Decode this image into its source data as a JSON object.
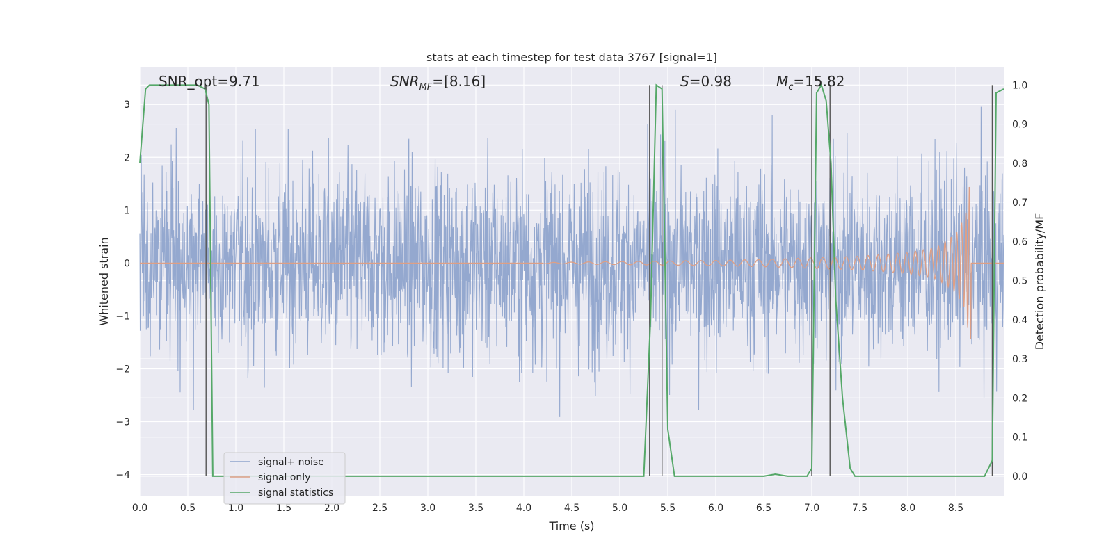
{
  "chart_data": {
    "type": "line",
    "title": "stats at each timestep for test data 3767 [signal=1]",
    "xlabel": "Time (s)",
    "ylabel": "Whitened strain",
    "y2label": "Detection probability/MF",
    "xlim": [
      0.0,
      9.0
    ],
    "ylim": [
      -4.4,
      3.7
    ],
    "y2lim": [
      -0.05,
      1.045
    ],
    "x_ticks": [
      0.0,
      0.5,
      1.0,
      1.5,
      2.0,
      2.5,
      3.0,
      3.5,
      4.0,
      4.5,
      5.0,
      5.5,
      6.0,
      6.5,
      7.0,
      7.5,
      8.0,
      8.5
    ],
    "x_tick_labels": [
      "0.0",
      "0.5",
      "1.0",
      "1.5",
      "2.0",
      "2.5",
      "3.0",
      "3.5",
      "4.0",
      "4.5",
      "5.0",
      "5.5",
      "6.0",
      "6.5",
      "7.0",
      "7.5",
      "8.0",
      "8.5"
    ],
    "y_ticks": [
      -4,
      -3,
      -2,
      -1,
      0,
      1,
      2,
      3
    ],
    "y_tick_labels": [
      "−4",
      "−3",
      "−2",
      "−1",
      "0",
      "1",
      "2",
      "3"
    ],
    "y2_ticks": [
      0.0,
      0.1,
      0.2,
      0.3,
      0.4,
      0.5,
      0.6,
      0.7,
      0.8,
      0.9,
      1.0
    ],
    "y2_tick_labels": [
      "0.0",
      "0.1",
      "0.2",
      "0.3",
      "0.4",
      "0.5",
      "0.6",
      "0.7",
      "0.8",
      "0.9",
      "1.0"
    ],
    "grid": true,
    "annotations": {
      "snr_opt": "SNR_opt=9.71",
      "snr_mf_prefix": "SNR",
      "snr_mf_sub": "MF",
      "snr_mf_value": "=[8.16]",
      "s_name": "S",
      "s_value": "=0.98",
      "mc_name": "M",
      "mc_sub": "c",
      "mc_value": "=15.82"
    },
    "legend": {
      "placement": "lower-left",
      "entries": [
        "signal+ noise",
        "signal only",
        "signal statistics"
      ]
    },
    "series": [
      {
        "name": "signal+ noise",
        "color": "#8fa4cc",
        "style": "whitened noise, amplitude approx 1 sigma, peaks up to about 3",
        "x_range": [
          0.0,
          9.0
        ]
      },
      {
        "name": "signal only",
        "color": "#dd9f86",
        "style": "chirp waveform growing toward merger",
        "x": [
          4.2,
          5.0,
          6.0,
          6.5,
          7.0,
          7.5,
          8.0,
          8.3,
          8.5,
          8.6,
          8.65,
          8.7
        ],
        "envelope": [
          0.01,
          0.03,
          0.05,
          0.07,
          0.1,
          0.13,
          0.2,
          0.3,
          0.55,
          0.9,
          1.6,
          0.0
        ]
      },
      {
        "name": "signal statistics",
        "color": "#55a868",
        "axis": "right",
        "x": [
          0.0,
          0.06,
          0.1,
          0.2,
          0.4,
          0.6,
          0.68,
          0.72,
          0.76,
          0.85,
          1.0,
          2.0,
          3.0,
          4.0,
          5.0,
          5.25,
          5.32,
          5.38,
          5.44,
          5.5,
          5.57,
          5.62,
          5.7,
          6.0,
          6.5,
          6.62,
          6.75,
          6.95,
          7.0,
          7.05,
          7.1,
          7.15,
          7.2,
          7.25,
          7.32,
          7.4,
          7.45,
          7.55,
          8.0,
          8.5,
          8.8,
          8.88,
          8.92,
          9.0
        ],
        "y": [
          0.8,
          0.99,
          1.0,
          1.0,
          1.0,
          1.0,
          0.99,
          0.95,
          0.0,
          0.0,
          0.0,
          0.0,
          0.0,
          0.0,
          0.0,
          0.0,
          0.4,
          1.0,
          0.99,
          0.12,
          0.0,
          0.0,
          0.0,
          0.0,
          0.0,
          0.005,
          0.0,
          0.0,
          0.02,
          0.98,
          1.0,
          0.96,
          0.8,
          0.45,
          0.2,
          0.02,
          0.0,
          0.0,
          0.0,
          0.0,
          0.0,
          0.04,
          0.98,
          0.99
        ]
      }
    ],
    "vertical_markers": [
      0.69,
      5.31,
      5.44,
      7.0,
      7.19,
      8.88
    ]
  }
}
